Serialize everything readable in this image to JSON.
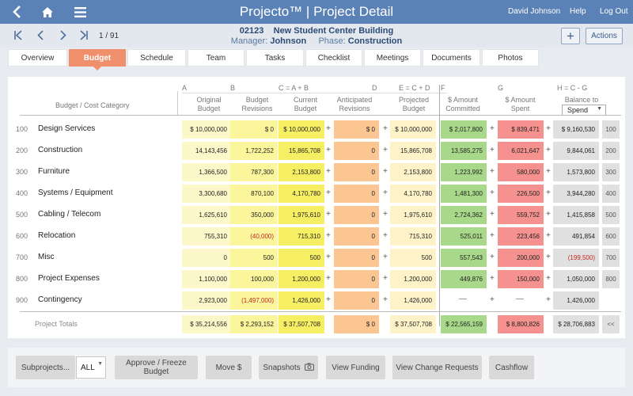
{
  "header": {
    "title_app": "Projecto™",
    "title_sep": "|",
    "title_page": "Project Detail",
    "user": "David Johnson",
    "help": "Help",
    "logout": "Log Out"
  },
  "subheader": {
    "pager_count": "1 / 91",
    "project_number": "02123",
    "project_name": "New Student Center Building",
    "manager_label": "Manager:",
    "manager": "Johnson",
    "phase_label": "Phase:",
    "phase": "Construction",
    "add_label": "+",
    "actions_label": "Actions"
  },
  "tabs": [
    {
      "label": "Overview"
    },
    {
      "label": "Budget"
    },
    {
      "label": "Schedule"
    },
    {
      "label": "Team"
    },
    {
      "label": "Tasks"
    },
    {
      "label": "Checklist"
    },
    {
      "label": "Meetings"
    },
    {
      "label": "Documents"
    },
    {
      "label": "Photos"
    }
  ],
  "budget": {
    "category_header": "Budget / Cost Category",
    "letters": [
      "A",
      "B",
      "C = A + B",
      "D",
      "E = C + D",
      "F",
      "G",
      "H = C - G"
    ],
    "columns": [
      {
        "line1": "Original",
        "line2": "Budget"
      },
      {
        "line1": "Budget",
        "line2": "Revisions"
      },
      {
        "line1": "Current",
        "line2": "Budget"
      },
      {
        "line1": "Anticipated",
        "line2": "Revisions"
      },
      {
        "line1": "Projected",
        "line2": "Budget"
      },
      {
        "line1": "$ Amount",
        "line2": "Committed"
      },
      {
        "line1": "$ Amount",
        "line2": "Spent"
      },
      {
        "line1": "Balance to",
        "line2": ""
      }
    ],
    "balance_select": "Spend",
    "plus": "+",
    "rows": [
      {
        "num": "100",
        "name": "Design Services",
        "orig": "$ 10,000,000",
        "rev": "$ 0",
        "cur": "$ 10,000,000",
        "ant": "$ 0",
        "proj": "$ 10,000,000",
        "com": "$ 2,017,800",
        "spent": "$ 839,471",
        "bal": "$ 9,160,530",
        "btn": "100",
        "rev_neg": false,
        "bal_neg": false
      },
      {
        "num": "200",
        "name": "Construction",
        "orig": "14,143,456",
        "rev": "1,722,252",
        "cur": "15,865,708",
        "ant": "0",
        "proj": "15,865,708",
        "com": "13,585,275",
        "spent": "6,021,647",
        "bal": "9,844,061",
        "btn": "200",
        "rev_neg": false,
        "bal_neg": false
      },
      {
        "num": "300",
        "name": "Furniture",
        "orig": "1,366,500",
        "rev": "787,300",
        "cur": "2,153,800",
        "ant": "0",
        "proj": "2,153,800",
        "com": "1,223,992",
        "spent": "580,000",
        "bal": "1,573,800",
        "btn": "300",
        "rev_neg": false,
        "bal_neg": false
      },
      {
        "num": "400",
        "name": "Systems / Equipment",
        "orig": "3,300,680",
        "rev": "870,100",
        "cur": "4,170,780",
        "ant": "0",
        "proj": "4,170,780",
        "com": "1,481,300",
        "spent": "226,500",
        "bal": "3,944,280",
        "btn": "400",
        "rev_neg": false,
        "bal_neg": false
      },
      {
        "num": "500",
        "name": "Cabling / Telecom",
        "orig": "1,625,610",
        "rev": "350,000",
        "cur": "1,975,610",
        "ant": "0",
        "proj": "1,975,610",
        "com": "2,724,362",
        "spent": "559,752",
        "bal": "1,415,858",
        "btn": "500",
        "rev_neg": false,
        "bal_neg": false
      },
      {
        "num": "600",
        "name": "Relocation",
        "orig": "755,310",
        "rev": "(40,000)",
        "cur": "715,310",
        "ant": "0",
        "proj": "715,310",
        "com": "525,011",
        "spent": "223,456",
        "bal": "491,854",
        "btn": "600",
        "rev_neg": true,
        "bal_neg": false
      },
      {
        "num": "700",
        "name": "Misc",
        "orig": "0",
        "rev": "500",
        "cur": "500",
        "ant": "0",
        "proj": "500",
        "com": "557,543",
        "spent": "200,000",
        "bal": "(199,500)",
        "btn": "700",
        "rev_neg": false,
        "bal_neg": true
      },
      {
        "num": "800",
        "name": "Project Expenses",
        "orig": "1,100,000",
        "rev": "100,000",
        "cur": "1,200,000",
        "ant": "0",
        "proj": "1,200,000",
        "com": "449,876",
        "spent": "150,000",
        "bal": "1,050,000",
        "btn": "800",
        "rev_neg": false,
        "bal_neg": false
      },
      {
        "num": "900",
        "name": "Contingency",
        "orig": "2,923,000",
        "rev": "(1,497,000)",
        "cur": "1,426,000",
        "ant": "0",
        "proj": "1,426,000",
        "com": "—",
        "spent": "—",
        "bal": "1,426,000",
        "btn": "",
        "rev_neg": true,
        "bal_neg": false
      }
    ],
    "totals": {
      "label": "Project Totals",
      "orig": "$ 35,214,556",
      "rev": "$ 2,293,152",
      "cur": "$ 37,507,708",
      "ant": "$ 0",
      "proj": "$ 37,507,708",
      "com": "$ 22,565,159",
      "spent": "$ 8,800,826",
      "bal": "$ 28,706,883",
      "btn": "<<"
    }
  },
  "bottom": {
    "subprojects": "Subprojects...",
    "all": "ALL",
    "approve_line1": "Approve / Freeze",
    "approve_line2": "Budget",
    "move": "Move $",
    "snapshots": "Snapshots",
    "view_funding": "View Funding",
    "view_change": "View Change Requests",
    "cashflow": "Cashflow"
  },
  "colors": {
    "header_bg": "#5a82b7",
    "active_tab": "#f08f6c",
    "original": "#fdf8c9",
    "revisions": "#fbf59c",
    "current": "#f7ef63",
    "anticipated": "#fbc691",
    "projected": "#fdf2c8",
    "committed": "#a8d88a",
    "spent": "#f5928f",
    "balance": "#e0e0e0",
    "negative": "#c4271f"
  }
}
